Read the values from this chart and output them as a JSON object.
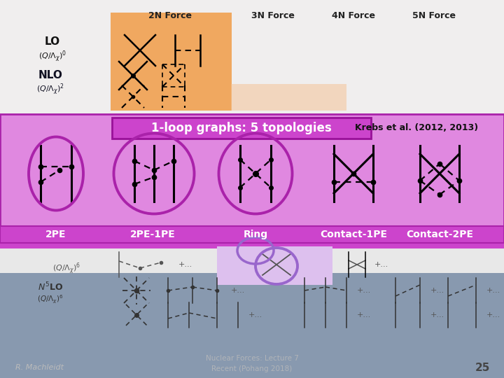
{
  "title_text": "1-loop graphs: 5 topologies",
  "krebs_text": "Krebs et al. (2012, 2013)",
  "labels": [
    "2PE",
    "2PE-1PE",
    "Ring",
    "Contact-1PE",
    "Contact-2PE"
  ],
  "ellipse_color": "#aa22aa",
  "machleidt_text": "R. Machleidt",
  "page_num": "25",
  "force_labels": [
    "2N Force",
    "3N Force",
    "4N Force",
    "5N Force"
  ],
  "bottom_text": "Nuclear Forces: Lecture 7\nRecent (Pohang 2018)",
  "bg_top": "#aec6d8",
  "bg_bottom": "#7090a8",
  "white_panel_color": "#f0eeee",
  "orange_color": "#f0a860",
  "purple_main": "#e088e0",
  "purple_dark": "#cc44cc",
  "purple_label_bar": "#cc44cc",
  "label_divider_color": "#aa22aa",
  "small_ring_ellipse": "#9966cc",
  "small_ring_bg": "#ddc0ee"
}
